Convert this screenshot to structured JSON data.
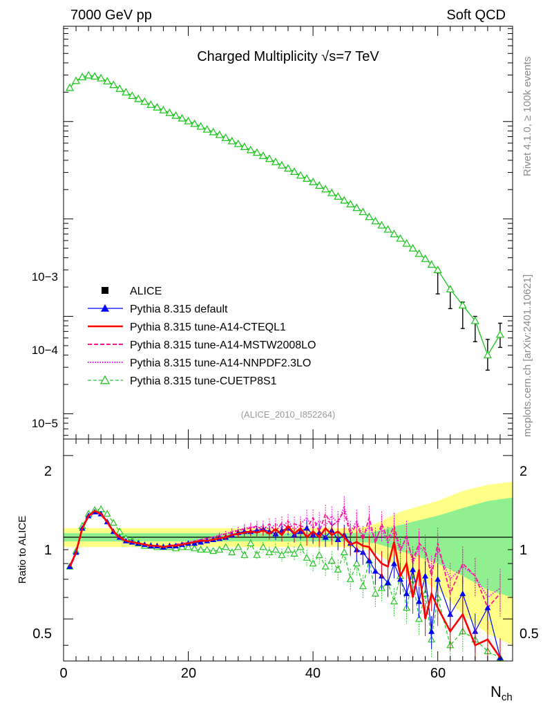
{
  "header": {
    "left": "7000 GeV pp",
    "right": "Soft QCD"
  },
  "side_labels": {
    "top": "Rivet 4.1.0, ≥ 100k events",
    "bottom": "mcplots.cern.ch [arXiv:2401.10621]"
  },
  "colors": {
    "data": "#000000",
    "default": "#0000ff",
    "a14_cteql1": "#ff0000",
    "a14_mstw": "#ff1493",
    "a14_nnpdf": "#ff00ff",
    "cuetp8s1": "#22c822",
    "band_outer": "#ffff88",
    "band_inner": "#90f090"
  },
  "chart_data": [
    {
      "type": "line",
      "title": "Charged Multiplicity √s=7 TeV",
      "analysis_label": "(ALICE_2010_I852264)",
      "xlabel": "N_ch",
      "ylabel": "",
      "yscale": "log",
      "xlim": [
        0,
        72
      ],
      "ylim": [
        5.5e-06,
        0.095
      ],
      "ytick_labels": [
        "10−5",
        "10−4",
        "10−3"
      ],
      "legend": [
        {
          "key": "data",
          "label": "ALICE",
          "style": "square"
        },
        {
          "key": "default",
          "label": "Pythia 8.315 default",
          "style": "solid-triangle"
        },
        {
          "key": "a14_cteql1",
          "label": "Pythia 8.315 tune-A14-CTEQL1",
          "style": "thick-solid"
        },
        {
          "key": "a14_mstw",
          "label": "Pythia 8.315 tune-A14-MSTW2008LO",
          "style": "dashed"
        },
        {
          "key": "a14_nnpdf",
          "label": "Pythia 8.315 tune-A14-NNPDF2.3LO",
          "style": "dotted"
        },
        {
          "key": "cuetp8s1",
          "label": "Pythia 8.315 tune-CUETP8S1",
          "style": "dashed-open-triangle"
        }
      ],
      "series_note": "CUETP8S1 curve drawn on top; other curves coincide on the log scale",
      "x": [
        1,
        2,
        3,
        4,
        5,
        6,
        7,
        8,
        9,
        10,
        11,
        12,
        13,
        14,
        15,
        16,
        17,
        18,
        19,
        20,
        21,
        22,
        23,
        24,
        25,
        26,
        27,
        28,
        29,
        30,
        31,
        32,
        33,
        34,
        35,
        36,
        37,
        38,
        39,
        40,
        41,
        42,
        43,
        44,
        45,
        46,
        47,
        48,
        49,
        50,
        51,
        52,
        53,
        54,
        55,
        56,
        57,
        58,
        59,
        60,
        62,
        64,
        66,
        68,
        70
      ],
      "cuetp8s1": [
        0.0222,
        0.0262,
        0.0286,
        0.0298,
        0.0291,
        0.0279,
        0.0259,
        0.0238,
        0.0217,
        0.02,
        0.0184,
        0.0171,
        0.016,
        0.0149,
        0.014,
        0.0131,
        0.0123,
        0.0115,
        0.0108,
        0.0101,
        0.0095,
        0.0089,
        0.0083,
        0.0078,
        0.0073,
        0.0068,
        0.0063,
        0.0059,
        0.0055,
        0.0051,
        0.0048,
        0.00445,
        0.00415,
        0.00385,
        0.00355,
        0.0033,
        0.00305,
        0.0028,
        0.0026,
        0.0024,
        0.0022,
        0.00202,
        0.00185,
        0.0017,
        0.00155,
        0.00142,
        0.0013,
        0.00118,
        0.00105,
        0.00095,
        0.00086,
        0.00078,
        0.0007,
        0.00063,
        0.00056,
        0.0005,
        0.00044,
        0.00039,
        0.00034,
        0.0003,
        0.00019,
        0.00013,
        9e-05,
        4e-05,
        6.5e-05
      ],
      "data_errors": [
        {
          "x": 60,
          "low": 0.00017,
          "high": 0.00028
        },
        {
          "x": 62,
          "low": 0.00012,
          "high": 0.00019
        },
        {
          "x": 64,
          "low": 7.5e-05,
          "high": 0.00014
        },
        {
          "x": 66,
          "low": 5.5e-05,
          "high": 0.0001
        },
        {
          "x": 68,
          "low": 2.8e-05,
          "high": 5.8e-05
        },
        {
          "x": 70,
          "low": 4.8e-05,
          "high": 8.5e-05
        }
      ]
    },
    {
      "type": "line",
      "title": "",
      "xlabel": "N_ch",
      "ylabel": "Ratio to ALICE",
      "xlim": [
        0,
        72
      ],
      "ylim": [
        0.35,
        2.3
      ],
      "yticks": [
        0.5,
        1,
        2
      ],
      "ytick_labels": [
        "0.5",
        "1",
        "2"
      ],
      "xticks": [
        0,
        20,
        40,
        60
      ],
      "xtick_labels": [
        "0",
        "20",
        "40",
        "60"
      ],
      "reference_line": 1,
      "band": {
        "x": [
          0,
          5,
          10,
          15,
          20,
          25,
          30,
          35,
          40,
          45,
          48,
          50,
          52,
          54,
          56,
          58,
          60,
          62,
          64,
          66,
          68,
          70,
          72
        ],
        "inner": [
          0.035,
          0.035,
          0.035,
          0.035,
          0.035,
          0.035,
          0.035,
          0.035,
          0.035,
          0.035,
          0.04,
          0.05,
          0.08,
          0.11,
          0.14,
          0.17,
          0.2,
          0.24,
          0.28,
          0.32,
          0.36,
          0.38,
          0.4
        ],
        "outer": [
          0.08,
          0.08,
          0.08,
          0.08,
          0.08,
          0.08,
          0.08,
          0.08,
          0.08,
          0.08,
          0.09,
          0.12,
          0.18,
          0.24,
          0.28,
          0.32,
          0.36,
          0.42,
          0.48,
          0.52,
          0.56,
          0.58,
          0.6
        ]
      },
      "x": [
        1,
        2,
        3,
        4,
        5,
        6,
        7,
        8,
        9,
        10,
        11,
        12,
        13,
        14,
        15,
        16,
        17,
        18,
        19,
        20,
        21,
        22,
        23,
        24,
        25,
        26,
        27,
        28,
        29,
        30,
        31,
        32,
        33,
        34,
        35,
        36,
        37,
        38,
        39,
        40,
        41,
        42,
        43,
        44,
        45,
        46,
        47,
        48,
        49,
        50,
        51,
        52,
        53,
        54,
        55,
        56,
        57,
        58,
        59,
        60,
        62,
        64,
        66,
        68,
        70
      ],
      "series": [
        {
          "name": "Pythia 8.315 default",
          "key": "default",
          "values": [
            0.78,
            0.88,
            1.08,
            1.2,
            1.24,
            1.22,
            1.14,
            1.05,
            1.0,
            0.97,
            0.96,
            0.95,
            0.94,
            0.93,
            0.93,
            0.92,
            0.93,
            0.93,
            0.94,
            0.95,
            0.95,
            0.96,
            0.97,
            0.98,
            0.99,
            1.0,
            1.02,
            1.04,
            1.05,
            1.05,
            1.06,
            1.07,
            1.05,
            1.03,
            1.06,
            1.08,
            1.02,
            1.05,
            1.08,
            1.02,
            1.04,
            1.0,
            1.06,
            0.98,
            1.02,
            0.95,
            0.9,
            0.88,
            0.82,
            0.75,
            0.72,
            0.68,
            0.8,
            0.7,
            0.62,
            0.76,
            0.58,
            0.72,
            0.45,
            0.7,
            0.52,
            0.62,
            0.45,
            0.55,
            0.36
          ]
        },
        {
          "name": "Pythia 8.315 tune-A14-CTEQL1",
          "key": "a14_cteql1",
          "values": [
            0.78,
            0.88,
            1.08,
            1.2,
            1.25,
            1.22,
            1.14,
            1.05,
            1.0,
            0.97,
            0.96,
            0.95,
            0.94,
            0.93,
            0.93,
            0.92,
            0.93,
            0.93,
            0.94,
            0.95,
            0.96,
            0.97,
            0.97,
            0.98,
            0.99,
            1.0,
            1.02,
            1.03,
            1.04,
            1.05,
            1.04,
            1.06,
            1.03,
            1.07,
            1.02,
            1.1,
            1.03,
            1.08,
            1.0,
            1.05,
            1.0,
            1.08,
            1.02,
            1.05,
            1.0,
            0.94,
            0.96,
            0.93,
            0.92,
            0.85,
            0.8,
            0.78,
            0.96,
            0.72,
            0.8,
            0.6,
            0.76,
            0.5,
            0.62,
            0.55,
            0.45,
            0.52,
            0.4,
            0.42,
            0.36
          ]
        },
        {
          "name": "Pythia 8.315 tune-A14-MSTW2008LO",
          "key": "a14_mstw",
          "values": [
            0.77,
            0.87,
            1.07,
            1.19,
            1.23,
            1.21,
            1.13,
            1.04,
            0.99,
            0.96,
            0.96,
            0.95,
            0.94,
            0.93,
            0.93,
            0.92,
            0.93,
            0.94,
            0.95,
            0.95,
            0.96,
            0.98,
            0.99,
            1.0,
            1.01,
            1.03,
            1.04,
            1.06,
            1.07,
            1.08,
            1.1,
            1.06,
            1.12,
            1.05,
            1.13,
            1.08,
            1.12,
            1.1,
            1.08,
            1.18,
            1.05,
            1.22,
            1.1,
            1.15,
            1.25,
            1.02,
            1.12,
            0.98,
            1.18,
            0.95,
            1.12,
            0.98,
            1.1,
            0.9,
            1.0,
            0.82,
            0.95,
            0.9,
            0.72,
            0.95,
            0.62,
            0.8,
            0.72,
            0.55,
            0.62
          ]
        },
        {
          "name": "Pythia 8.315 tune-A14-NNPDF2.3LO",
          "key": "a14_nnpdf",
          "values": [
            0.77,
            0.87,
            1.07,
            1.19,
            1.23,
            1.21,
            1.13,
            1.04,
            0.99,
            0.96,
            0.96,
            0.95,
            0.94,
            0.93,
            0.93,
            0.92,
            0.93,
            0.94,
            0.95,
            0.96,
            0.97,
            0.98,
            0.99,
            1.0,
            1.02,
            1.03,
            1.05,
            1.06,
            1.08,
            1.09,
            1.08,
            1.1,
            1.07,
            1.12,
            1.08,
            1.15,
            1.06,
            1.12,
            1.18,
            1.08,
            1.15,
            1.1,
            1.2,
            1.12,
            1.3,
            1.05,
            1.15,
            1.0,
            1.1,
            0.98,
            1.08,
            0.95,
            1.05,
            0.88,
            1.02,
            0.8,
            0.92,
            0.88,
            0.75,
            0.9,
            0.7,
            0.78,
            0.72,
            0.6,
            0.65
          ]
        },
        {
          "name": "Pythia 8.315 tune-CUETP8S1",
          "key": "cuetp8s1",
          "values": [
            0.78,
            0.89,
            1.1,
            1.22,
            1.26,
            1.27,
            1.22,
            1.13,
            1.05,
            0.99,
            0.97,
            0.95,
            0.93,
            0.93,
            0.92,
            0.92,
            0.92,
            0.91,
            0.92,
            0.92,
            0.91,
            0.9,
            0.9,
            0.89,
            0.9,
            0.92,
            0.88,
            0.92,
            0.86,
            0.95,
            0.86,
            0.92,
            0.88,
            0.9,
            0.86,
            0.9,
            0.87,
            0.92,
            0.84,
            0.8,
            0.86,
            0.78,
            0.82,
            0.76,
            0.88,
            0.7,
            0.8,
            0.66,
            0.82,
            0.62,
            0.65,
            0.68,
            0.58,
            0.72,
            0.55,
            0.7,
            0.5,
            0.62,
            0.42,
            0.6,
            0.4,
            0.45,
            0.42,
            0.38,
            0.36
          ]
        }
      ]
    }
  ]
}
